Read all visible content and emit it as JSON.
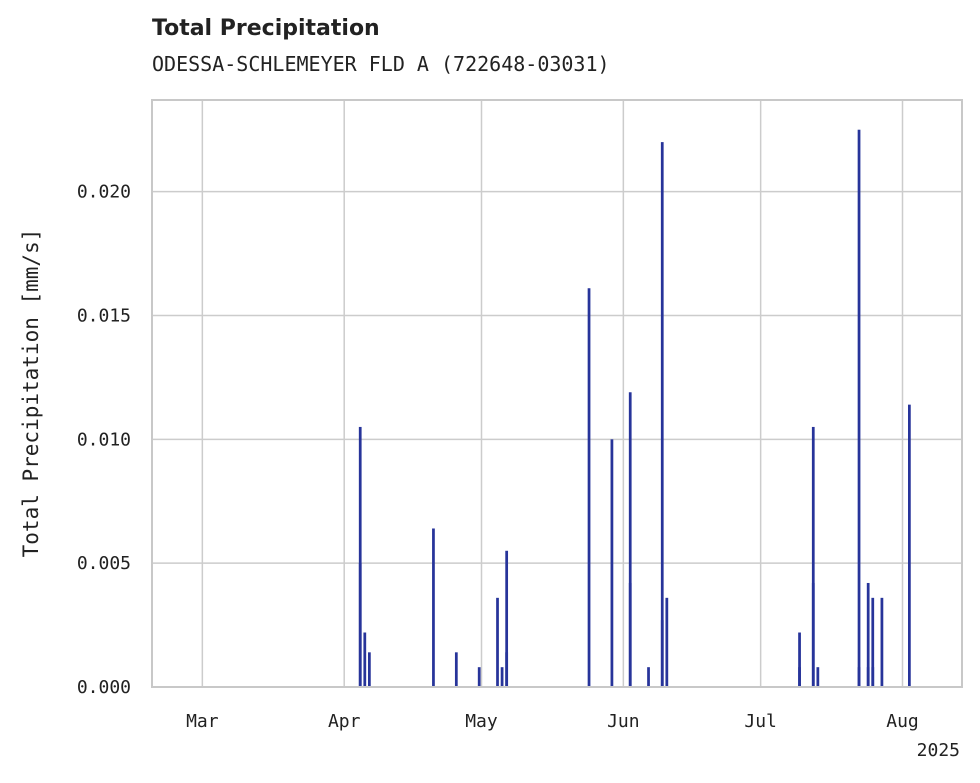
{
  "chart_data": {
    "type": "bar",
    "title": "Total Precipitation",
    "subtitle": "ODESSA-SCHLEMEYER FLD A (722648-03031)",
    "xlabel": "",
    "ylabel": "Total Precipitation [mm/s]",
    "x_ticks": [
      "Mar",
      "Apr",
      "May",
      "Jun",
      "Jul",
      "Aug"
    ],
    "x_tick_dates": [
      "2025-03-01",
      "2025-04-01",
      "2025-05-01",
      "2025-06-01",
      "2025-07-01",
      "2025-08-01"
    ],
    "x_offset_label": "2025",
    "xlim": [
      "2025-02-18",
      "2025-08-14"
    ],
    "y_ticks": [
      "0.000",
      "0.005",
      "0.010",
      "0.015",
      "0.020"
    ],
    "y_tick_values": [
      0.0,
      0.005,
      0.01,
      0.015,
      0.02
    ],
    "ylim": [
      0,
      0.0237
    ],
    "grid": true,
    "bar_color": "#27349a",
    "points": [
      {
        "x": "2025-04-04",
        "y": 0.0105
      },
      {
        "x": "2025-04-04",
        "y": 0.005
      },
      {
        "x": "2025-04-05",
        "y": 0.0022
      },
      {
        "x": "2025-04-06",
        "y": 0.0014
      },
      {
        "x": "2025-04-20",
        "y": 0.0064
      },
      {
        "x": "2025-04-25",
        "y": 0.0014
      },
      {
        "x": "2025-04-30",
        "y": 0.0008
      },
      {
        "x": "2025-05-04",
        "y": 0.0036
      },
      {
        "x": "2025-05-05",
        "y": 0.0008
      },
      {
        "x": "2025-05-06",
        "y": 0.0055
      },
      {
        "x": "2025-05-06",
        "y": 0.0014
      },
      {
        "x": "2025-05-24",
        "y": 0.0161
      },
      {
        "x": "2025-05-29",
        "y": 0.01
      },
      {
        "x": "2025-06-02",
        "y": 0.0119
      },
      {
        "x": "2025-06-02",
        "y": 0.0042
      },
      {
        "x": "2025-06-06",
        "y": 0.0008
      },
      {
        "x": "2025-06-09",
        "y": 0.022
      },
      {
        "x": "2025-06-09",
        "y": 0.0027
      },
      {
        "x": "2025-06-10",
        "y": 0.0036
      },
      {
        "x": "2025-07-09",
        "y": 0.0022
      },
      {
        "x": "2025-07-09",
        "y": 0.0008
      },
      {
        "x": "2025-07-12",
        "y": 0.0105
      },
      {
        "x": "2025-07-12",
        "y": 0.0042
      },
      {
        "x": "2025-07-13",
        "y": 0.0008
      },
      {
        "x": "2025-07-22",
        "y": 0.0225
      },
      {
        "x": "2025-07-22",
        "y": 0.0008
      },
      {
        "x": "2025-07-24",
        "y": 0.0042
      },
      {
        "x": "2025-07-24",
        "y": 0.0008
      },
      {
        "x": "2025-07-25",
        "y": 0.0036
      },
      {
        "x": "2025-07-25",
        "y": 0.0008
      },
      {
        "x": "2025-07-27",
        "y": 0.0036
      },
      {
        "x": "2025-08-02",
        "y": 0.0114
      }
    ]
  }
}
